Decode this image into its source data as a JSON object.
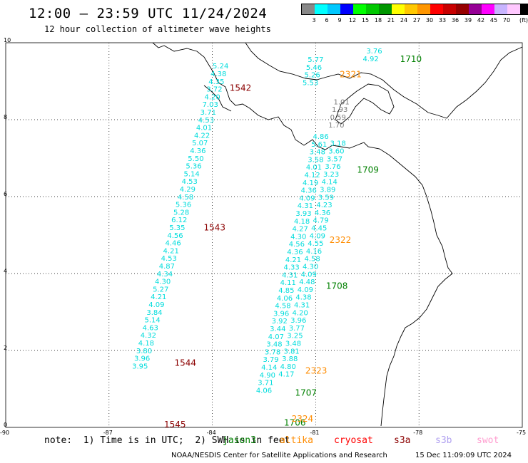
{
  "header": {
    "title": "12:00 – 23:59 UTC 11/24/2024",
    "subtitle": "12 hour collection of altimeter wave heights"
  },
  "legend": {
    "colors": [
      "#888888",
      "#00ffff",
      "#00c8ff",
      "#0000ff",
      "#00ff00",
      "#00c800",
      "#009600",
      "#ffff00",
      "#ffc800",
      "#ff9600",
      "#ff0000",
      "#c80000",
      "#960000",
      "#960096",
      "#ff00ff",
      "#c8b4ff",
      "#ffc8ff",
      "#000000"
    ],
    "labels": [
      "3",
      "6",
      "9",
      "12",
      "15",
      "18",
      "21",
      "24",
      "27",
      "30",
      "33",
      "36",
      "39",
      "42",
      "45",
      "70"
    ],
    "unit": "(ft)"
  },
  "axes": {
    "x_ticks": [
      "-90",
      "-87",
      "-84",
      "-81",
      "-78",
      "-75"
    ],
    "y_ticks": [
      "0",
      "2",
      "4",
      "6",
      "8",
      "10"
    ]
  },
  "tracks": [
    {
      "satellite": "jason3",
      "color": "#00dcdc",
      "points": [
        {
          "lon": -83.76,
          "lat": 9.33,
          "h": "5.24"
        },
        {
          "lon": -83.82,
          "lat": 9.13,
          "h": "4.38"
        },
        {
          "lon": -83.88,
          "lat": 8.93,
          "h": "4.35"
        },
        {
          "lon": -83.94,
          "lat": 8.73,
          "h": "3.72"
        },
        {
          "lon": -84.0,
          "lat": 8.53,
          "h": "4.20"
        },
        {
          "lon": -84.06,
          "lat": 8.33,
          "h": "7.03"
        },
        {
          "lon": -84.12,
          "lat": 8.13,
          "h": "3.71"
        },
        {
          "lon": -84.18,
          "lat": 7.93,
          "h": "4.53"
        },
        {
          "lon": -84.24,
          "lat": 7.73,
          "h": "4.01"
        },
        {
          "lon": -84.3,
          "lat": 7.53,
          "h": "4.22"
        },
        {
          "lon": -84.36,
          "lat": 7.33,
          "h": "5.07"
        },
        {
          "lon": -84.42,
          "lat": 7.13,
          "h": "4.36"
        },
        {
          "lon": -84.48,
          "lat": 6.93,
          "h": "5.50"
        },
        {
          "lon": -84.54,
          "lat": 6.73,
          "h": "5.36"
        },
        {
          "lon": -84.6,
          "lat": 6.53,
          "h": "5.14"
        },
        {
          "lon": -84.66,
          "lat": 6.33,
          "h": "4.53"
        },
        {
          "lon": -84.72,
          "lat": 6.13,
          "h": "4.29"
        },
        {
          "lon": -84.78,
          "lat": 5.93,
          "h": "4.58"
        },
        {
          "lon": -84.84,
          "lat": 5.73,
          "h": "5.36"
        },
        {
          "lon": -84.9,
          "lat": 5.53,
          "h": "5.28"
        },
        {
          "lon": -84.96,
          "lat": 5.33,
          "h": "6.12"
        },
        {
          "lon": -85.02,
          "lat": 5.13,
          "h": "5.35"
        },
        {
          "lon": -85.08,
          "lat": 4.93,
          "h": "4.56"
        },
        {
          "lon": -85.14,
          "lat": 4.73,
          "h": "4.46"
        },
        {
          "lon": -85.2,
          "lat": 4.53,
          "h": "4.21"
        },
        {
          "lon": -85.26,
          "lat": 4.33,
          "h": "4.53"
        },
        {
          "lon": -85.32,
          "lat": 4.13,
          "h": "4.87"
        },
        {
          "lon": -85.38,
          "lat": 3.93,
          "h": "4.34"
        },
        {
          "lon": -85.44,
          "lat": 3.73,
          "h": "4.30"
        },
        {
          "lon": -85.5,
          "lat": 3.53,
          "h": "5.27"
        },
        {
          "lon": -85.56,
          "lat": 3.33,
          "h": "4.21"
        },
        {
          "lon": -85.62,
          "lat": 3.13,
          "h": "4.09"
        },
        {
          "lon": -85.68,
          "lat": 2.93,
          "h": "3.84"
        },
        {
          "lon": -85.74,
          "lat": 2.73,
          "h": "5.14"
        },
        {
          "lon": -85.8,
          "lat": 2.53,
          "h": "4.63"
        },
        {
          "lon": -85.86,
          "lat": 2.33,
          "h": "4.32"
        },
        {
          "lon": -85.92,
          "lat": 2.13,
          "h": "4.18"
        },
        {
          "lon": -85.98,
          "lat": 1.93,
          "h": "3.80"
        },
        {
          "lon": -86.04,
          "lat": 1.73,
          "h": "3.96"
        },
        {
          "lon": -86.1,
          "lat": 1.53,
          "h": "3.95"
        }
      ]
    },
    {
      "satellite": "jason3",
      "color": "#00dcdc",
      "points": [
        {
          "lon": -81.0,
          "lat": 9.5,
          "h": "5.77"
        },
        {
          "lon": -81.05,
          "lat": 9.3,
          "h": "5.46"
        },
        {
          "lon": -81.1,
          "lat": 9.1,
          "h": "5.26"
        },
        {
          "lon": -81.15,
          "lat": 8.9,
          "h": "5.53"
        },
        {
          "lon": -80.85,
          "lat": 7.5,
          "h": "4.86"
        },
        {
          "lon": -80.9,
          "lat": 7.3,
          "h": "5.61"
        },
        {
          "lon": -80.95,
          "lat": 7.1,
          "h": "3.48"
        },
        {
          "lon": -81.0,
          "lat": 6.9,
          "h": "3.58"
        },
        {
          "lon": -81.05,
          "lat": 6.7,
          "h": "4.01"
        },
        {
          "lon": -81.1,
          "lat": 6.5,
          "h": "4.12"
        },
        {
          "lon": -81.15,
          "lat": 6.3,
          "h": "4.19"
        },
        {
          "lon": -81.2,
          "lat": 6.1,
          "h": "4.36"
        },
        {
          "lon": -81.25,
          "lat": 5.9,
          "h": "4.09"
        },
        {
          "lon": -81.3,
          "lat": 5.7,
          "h": "4.31"
        },
        {
          "lon": -81.35,
          "lat": 5.5,
          "h": "3.93"
        },
        {
          "lon": -81.4,
          "lat": 5.3,
          "h": "4.18"
        },
        {
          "lon": -81.45,
          "lat": 5.1,
          "h": "4.27"
        },
        {
          "lon": -81.5,
          "lat": 4.9,
          "h": "4.30"
        },
        {
          "lon": -81.55,
          "lat": 4.7,
          "h": "4.56"
        },
        {
          "lon": -81.6,
          "lat": 4.5,
          "h": "4.36"
        },
        {
          "lon": -81.65,
          "lat": 4.3,
          "h": "4.21"
        },
        {
          "lon": -81.7,
          "lat": 4.1,
          "h": "4.33"
        },
        {
          "lon": -81.75,
          "lat": 3.9,
          "h": "4.31"
        },
        {
          "lon": -81.8,
          "lat": 3.7,
          "h": "4.11"
        },
        {
          "lon": -81.85,
          "lat": 3.5,
          "h": "4.85"
        },
        {
          "lon": -81.9,
          "lat": 3.3,
          "h": "4.06"
        },
        {
          "lon": -81.95,
          "lat": 3.1,
          "h": "4.58"
        },
        {
          "lon": -82.0,
          "lat": 2.9,
          "h": "3.96"
        },
        {
          "lon": -82.05,
          "lat": 2.7,
          "h": "3.92"
        },
        {
          "lon": -82.1,
          "lat": 2.5,
          "h": "3.44"
        },
        {
          "lon": -82.15,
          "lat": 2.3,
          "h": "4.07"
        },
        {
          "lon": -82.2,
          "lat": 2.1,
          "h": "3.48"
        },
        {
          "lon": -82.25,
          "lat": 1.9,
          "h": "3.78"
        },
        {
          "lon": -82.3,
          "lat": 1.7,
          "h": "3.79"
        },
        {
          "lon": -82.35,
          "lat": 1.5,
          "h": "4.14"
        },
        {
          "lon": -82.4,
          "lat": 1.3,
          "h": "4.90"
        },
        {
          "lon": -82.45,
          "lat": 1.1,
          "h": "3.71"
        },
        {
          "lon": -82.5,
          "lat": 0.9,
          "h": "4.06"
        }
      ]
    },
    {
      "satellite": "jason3",
      "color": "#00dcdc",
      "points": [
        {
          "lon": -80.35,
          "lat": 7.32,
          "h": "3.18"
        },
        {
          "lon": -80.4,
          "lat": 7.12,
          "h": "3.60"
        },
        {
          "lon": -80.45,
          "lat": 6.92,
          "h": "3.57"
        },
        {
          "lon": -80.5,
          "lat": 6.72,
          "h": "3.76"
        },
        {
          "lon": -80.55,
          "lat": 6.52,
          "h": "3.23"
        },
        {
          "lon": -80.6,
          "lat": 6.32,
          "h": "4.14"
        },
        {
          "lon": -80.65,
          "lat": 6.12,
          "h": "3.89"
        },
        {
          "lon": -80.7,
          "lat": 5.92,
          "h": "3.59"
        },
        {
          "lon": -80.75,
          "lat": 5.72,
          "h": "4.23"
        },
        {
          "lon": -80.8,
          "lat": 5.52,
          "h": "4.36"
        },
        {
          "lon": -80.85,
          "lat": 5.32,
          "h": "4.79"
        },
        {
          "lon": -80.9,
          "lat": 5.12,
          "h": "4.45"
        },
        {
          "lon": -80.95,
          "lat": 4.92,
          "h": "4.09"
        },
        {
          "lon": -81.0,
          "lat": 4.72,
          "h": "4.55"
        },
        {
          "lon": -81.05,
          "lat": 4.52,
          "h": "4.16"
        },
        {
          "lon": -81.1,
          "lat": 4.32,
          "h": "4.58"
        },
        {
          "lon": -81.15,
          "lat": 4.12,
          "h": "4.30"
        },
        {
          "lon": -81.2,
          "lat": 3.92,
          "h": "4.09"
        },
        {
          "lon": -81.25,
          "lat": 3.72,
          "h": "4.48"
        },
        {
          "lon": -81.3,
          "lat": 3.52,
          "h": "4.09"
        },
        {
          "lon": -81.35,
          "lat": 3.32,
          "h": "4.38"
        },
        {
          "lon": -81.4,
          "lat": 3.12,
          "h": "4.31"
        },
        {
          "lon": -81.45,
          "lat": 2.92,
          "h": "4.20"
        },
        {
          "lon": -81.5,
          "lat": 2.72,
          "h": "3.96"
        },
        {
          "lon": -81.55,
          "lat": 2.52,
          "h": "3.77"
        },
        {
          "lon": -81.6,
          "lat": 2.32,
          "h": "3.25"
        },
        {
          "lon": -81.65,
          "lat": 2.12,
          "h": "3.48"
        },
        {
          "lon": -81.7,
          "lat": 1.92,
          "h": "3.81"
        },
        {
          "lon": -81.75,
          "lat": 1.72,
          "h": "3.88"
        },
        {
          "lon": -81.8,
          "lat": 1.52,
          "h": "4.80"
        },
        {
          "lon": -81.85,
          "lat": 1.32,
          "h": "4.17"
        }
      ]
    },
    {
      "satellite": "jason3",
      "color": "#00dcdc",
      "points": [
        {
          "lon": -79.3,
          "lat": 9.72,
          "h": "3.76"
        },
        {
          "lon": -79.4,
          "lat": 9.52,
          "h": "4.92"
        }
      ]
    },
    {
      "satellite": "cryosat",
      "color": "#7a7a7a",
      "points": [
        {
          "lon": -80.25,
          "lat": 8.4,
          "h": "1.01"
        },
        {
          "lon": -80.3,
          "lat": 8.2,
          "h": "1.93"
        },
        {
          "lon": -80.35,
          "lat": 8.0,
          "h": "0.59"
        },
        {
          "lon": -80.4,
          "lat": 7.8,
          "h": "1.70"
        }
      ]
    }
  ],
  "time_labels": [
    {
      "text": "1542",
      "color": "#8b0000",
      "lon": -83.5,
      "lat": 8.75
    },
    {
      "text": "1543",
      "color": "#8b0000",
      "lon": -84.25,
      "lat": 5.12
    },
    {
      "text": "1544",
      "color": "#8b0000",
      "lon": -85.1,
      "lat": 1.6
    },
    {
      "text": "1545",
      "color": "#8b0000",
      "lon": -85.4,
      "lat": 0.0
    },
    {
      "text": "1710",
      "color": "#008000",
      "lon": -78.55,
      "lat": 9.5
    },
    {
      "text": "1709",
      "color": "#008000",
      "lon": -79.8,
      "lat": 6.62
    },
    {
      "text": "1708",
      "color": "#008000",
      "lon": -80.7,
      "lat": 3.6
    },
    {
      "text": "1707",
      "color": "#008000",
      "lon": -81.6,
      "lat": 0.82
    },
    {
      "text": "1706",
      "color": "#008000",
      "lon": -81.92,
      "lat": 0.05
    },
    {
      "text": "2321",
      "color": "#ff8c00",
      "lon": -80.3,
      "lat": 9.1
    },
    {
      "text": "2322",
      "color": "#ff8c00",
      "lon": -80.6,
      "lat": 4.8
    },
    {
      "text": "2323",
      "color": "#ff8c00",
      "lon": -81.3,
      "lat": 1.4
    },
    {
      "text": "2324",
      "color": "#ff8c00",
      "lon": -81.7,
      "lat": 0.15
    }
  ],
  "footer": {
    "note": "note:  1) Time is in UTC;  2) SWH is in feet",
    "satellites": [
      {
        "name": "jason3",
        "color": "#008000"
      },
      {
        "name": "altika",
        "color": "#ff8c00"
      },
      {
        "name": "cryosat",
        "color": "#ff0000"
      },
      {
        "name": "s3a",
        "color": "#8b0000"
      },
      {
        "name": "s3b",
        "color": "#b0a0f0"
      },
      {
        "name": "swot",
        "color": "#ff9ccf"
      }
    ],
    "credit": "NOAA/NESDIS Center for Satellite Applications and Research",
    "timestamp": "15 Dec 11:09:09 UTC 2024"
  }
}
